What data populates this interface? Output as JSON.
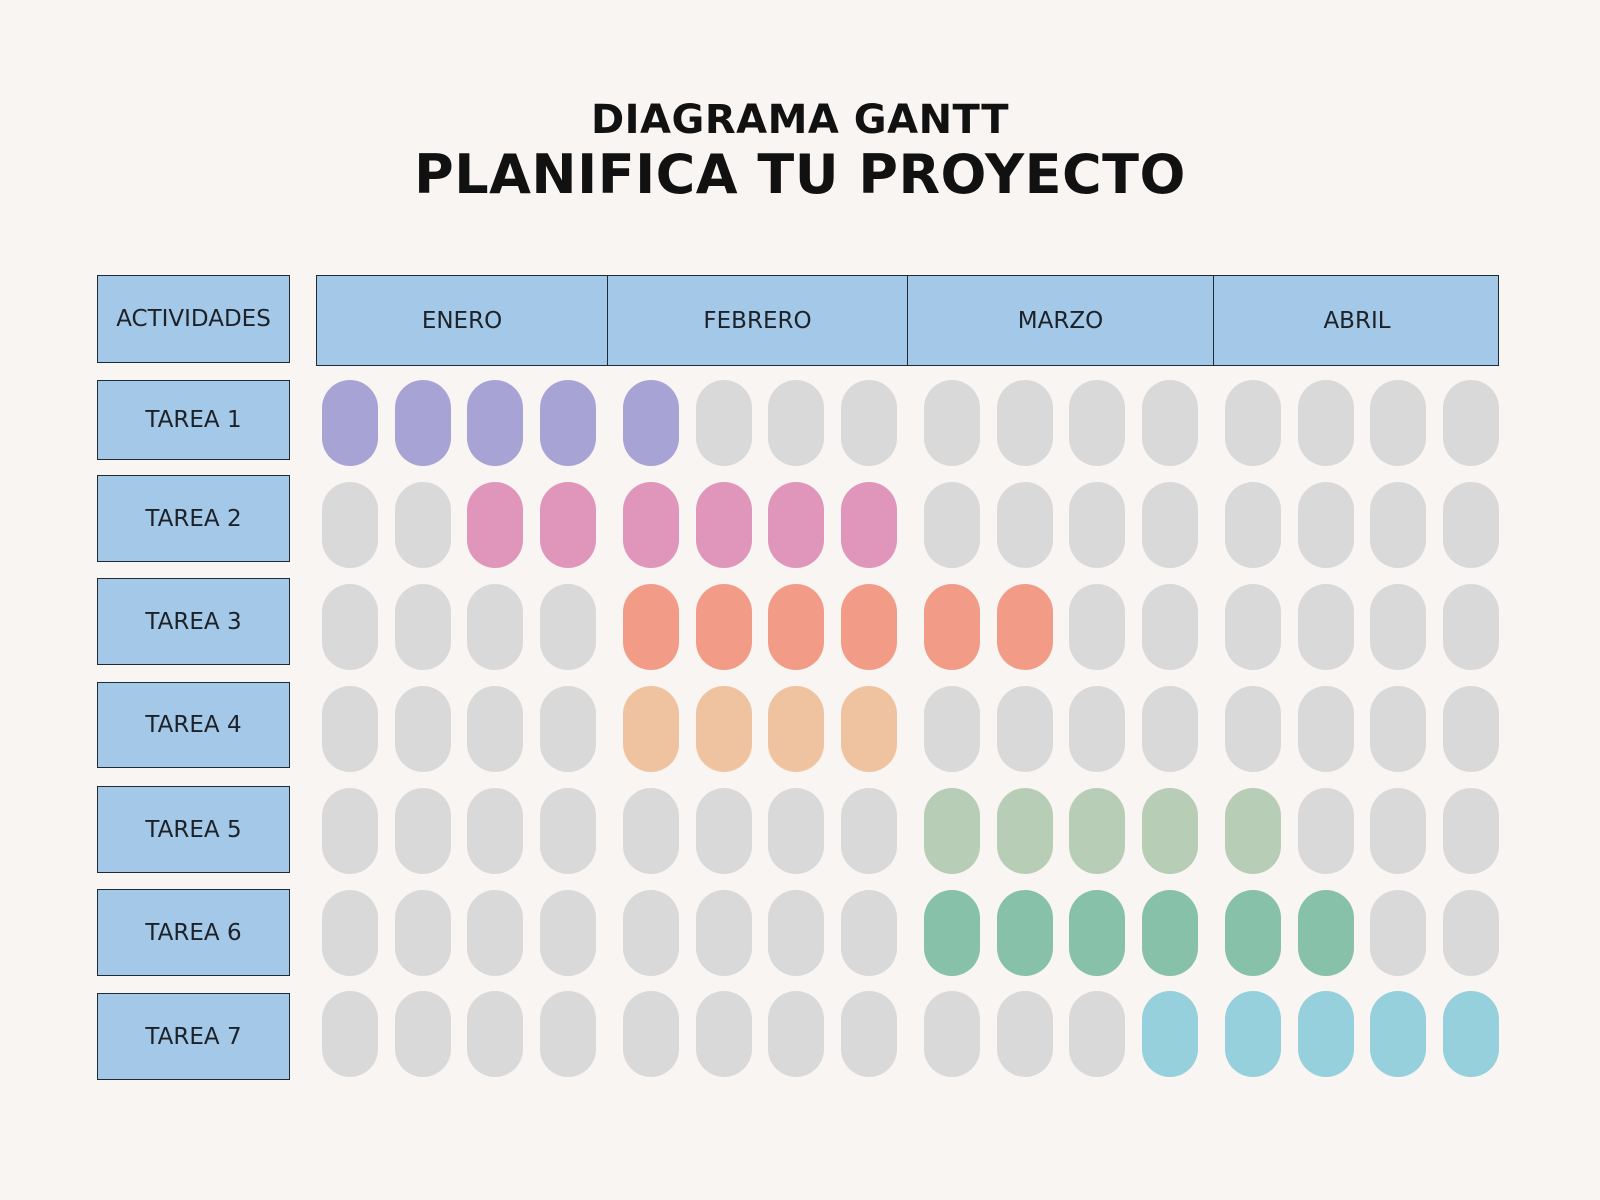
{
  "header": {
    "subtitle": "DIAGRAMA GANTT",
    "title": "PLANIFICA TU PROYECTO"
  },
  "table": {
    "activities_header": "ACTIVIDADES",
    "months": [
      "ENERO",
      "FEBRERO",
      "MARZO",
      "ABRIL"
    ],
    "weeks_per_month": 4,
    "empty_color": "#d9d9d9",
    "header_color": "#a4c8e8"
  },
  "tasks": [
    {
      "label": "TAREA 1",
      "color": "#a7a3d5",
      "start_week": 1,
      "end_week": 5
    },
    {
      "label": "TAREA 2",
      "color": "#e096bb",
      "start_week": 3,
      "end_week": 8
    },
    {
      "label": "TAREA 3",
      "color": "#f29c88",
      "start_week": 5,
      "end_week": 10
    },
    {
      "label": "TAREA 4",
      "color": "#f0c3a0",
      "start_week": 5,
      "end_week": 8
    },
    {
      "label": "TAREA 5",
      "color": "#b7cdb5",
      "start_week": 9,
      "end_week": 13
    },
    {
      "label": "TAREA 6",
      "color": "#87c1aa",
      "start_week": 9,
      "end_week": 14
    },
    {
      "label": "TAREA 7",
      "color": "#96d0dc",
      "start_week": 12,
      "end_week": 16
    }
  ]
}
